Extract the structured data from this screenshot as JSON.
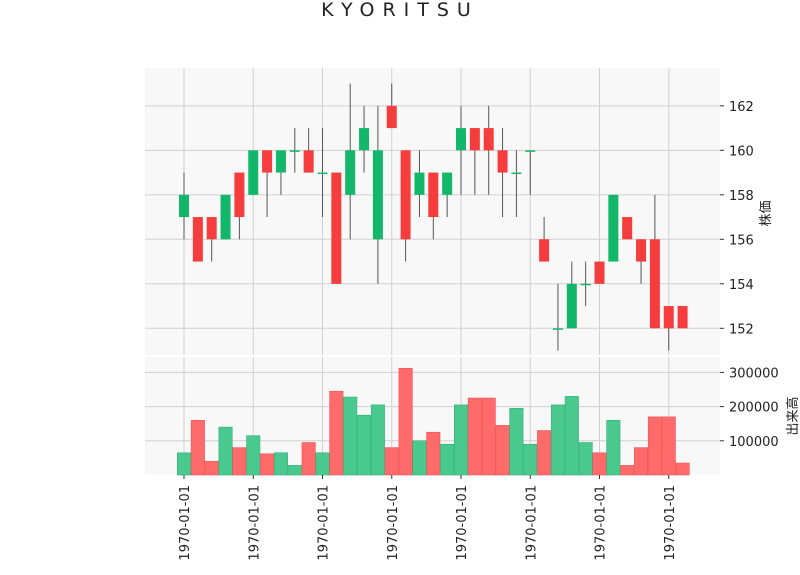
{
  "chart_data": {
    "title": "KYORITSU",
    "colors": {
      "up": "#12b76a",
      "down": "#f63d3d",
      "up_volume": "#4ac98e",
      "down_volume": "#ff6b6b",
      "grid": "#d0d0d0",
      "panel_bg": "#f8f8f8",
      "wick": "#555555"
    },
    "price_panel": {
      "type": "candlestick",
      "ylabel": "株価",
      "ylim": [
        150.8,
        163.7
      ],
      "yticks": [
        152,
        154,
        156,
        158,
        160,
        162
      ]
    },
    "volume_panel": {
      "type": "bar",
      "ylabel": "出来高",
      "ylim": [
        0,
        345000
      ],
      "yticks": [
        100000,
        200000,
        300000
      ],
      "ytick_labels": [
        "100000",
        "200000",
        "300000"
      ]
    },
    "xaxis": {
      "tick_label": "1970-01-01",
      "tick_indices": [
        0,
        5,
        10,
        15,
        20,
        25,
        30,
        35
      ],
      "tick_labels": [
        "1970-01-01",
        "1970-01-01",
        "1970-01-01",
        "1970-01-01",
        "1970-01-01",
        "1970-01-01",
        "1970-01-01",
        "1970-01-01"
      ]
    },
    "candles": [
      {
        "open": 157,
        "high": 159,
        "low": 156,
        "close": 158,
        "volume": 65000
      },
      {
        "open": 157,
        "high": 157,
        "low": 155,
        "close": 155,
        "volume": 160000
      },
      {
        "open": 157,
        "high": 157,
        "low": 155,
        "close": 156,
        "volume": 40000
      },
      {
        "open": 156,
        "high": 158,
        "low": 156,
        "close": 158,
        "volume": 140000
      },
      {
        "open": 159,
        "high": 159,
        "low": 156,
        "close": 157,
        "volume": 80000
      },
      {
        "open": 158,
        "high": 160,
        "low": 158,
        "close": 160,
        "volume": 115000
      },
      {
        "open": 160,
        "high": 160,
        "low": 157,
        "close": 159,
        "volume": 62000
      },
      {
        "open": 159,
        "high": 160,
        "low": 158,
        "close": 160,
        "volume": 65000
      },
      {
        "open": 160,
        "high": 161,
        "low": 159,
        "close": 160,
        "volume": 28000
      },
      {
        "open": 160,
        "high": 161,
        "low": 159,
        "close": 159,
        "volume": 95000
      },
      {
        "open": 159,
        "high": 161,
        "low": 157,
        "close": 159,
        "volume": 65000
      },
      {
        "open": 159,
        "high": 159,
        "low": 154,
        "close": 154,
        "volume": 245000
      },
      {
        "open": 158,
        "high": 163,
        "low": 156,
        "close": 160,
        "volume": 228000
      },
      {
        "open": 160,
        "high": 162,
        "low": 159,
        "close": 161,
        "volume": 175000
      },
      {
        "open": 156,
        "high": 162,
        "low": 154,
        "close": 160,
        "volume": 205000
      },
      {
        "open": 162,
        "high": 163,
        "low": 161,
        "close": 161,
        "volume": 80000
      },
      {
        "open": 160,
        "high": 160,
        "low": 155,
        "close": 156,
        "volume": 312000
      },
      {
        "open": 158,
        "high": 160,
        "low": 157,
        "close": 159,
        "volume": 100000
      },
      {
        "open": 159,
        "high": 159,
        "low": 156,
        "close": 157,
        "volume": 125000
      },
      {
        "open": 158,
        "high": 159,
        "low": 157,
        "close": 159,
        "volume": 90000
      },
      {
        "open": 160,
        "high": 162,
        "low": 158,
        "close": 161,
        "volume": 205000
      },
      {
        "open": 161,
        "high": 161,
        "low": 158,
        "close": 160,
        "volume": 225000
      },
      {
        "open": 161,
        "high": 162,
        "low": 158,
        "close": 160,
        "volume": 225000
      },
      {
        "open": 160,
        "high": 161,
        "low": 157,
        "close": 159,
        "volume": 145000
      },
      {
        "open": 159,
        "high": 160,
        "low": 157,
        "close": 159,
        "volume": 195000
      },
      {
        "open": 160,
        "high": 160,
        "low": 158,
        "close": 160,
        "volume": 90000
      },
      {
        "open": 156,
        "high": 157,
        "low": 155,
        "close": 155,
        "volume": 130000
      },
      {
        "open": 152,
        "high": 154,
        "low": 151,
        "close": 152,
        "volume": 205000
      },
      {
        "open": 152,
        "high": 155,
        "low": 152,
        "close": 154,
        "volume": 230000
      },
      {
        "open": 154,
        "high": 155,
        "low": 153,
        "close": 154,
        "volume": 95000
      },
      {
        "open": 155,
        "high": 155,
        "low": 154,
        "close": 154,
        "volume": 65000
      },
      {
        "open": 155,
        "high": 158,
        "low": 155,
        "close": 158,
        "volume": 160000
      },
      {
        "open": 157,
        "high": 157,
        "low": 156,
        "close": 156,
        "volume": 28000
      },
      {
        "open": 156,
        "high": 156,
        "low": 154,
        "close": 155,
        "volume": 80000
      },
      {
        "open": 156,
        "high": 158,
        "low": 152,
        "close": 152,
        "volume": 170000
      },
      {
        "open": 153,
        "high": 153,
        "low": 151,
        "close": 152,
        "volume": 170000
      },
      {
        "open": 153,
        "high": 153,
        "low": 152,
        "close": 152,
        "volume": 35000
      }
    ]
  }
}
